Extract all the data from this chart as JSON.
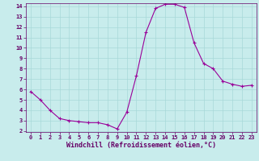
{
  "x": [
    0,
    1,
    2,
    3,
    4,
    5,
    6,
    7,
    8,
    9,
    10,
    11,
    12,
    13,
    14,
    15,
    16,
    17,
    18,
    19,
    20,
    21,
    22,
    23
  ],
  "y": [
    5.8,
    5.0,
    4.0,
    3.2,
    3.0,
    2.9,
    2.8,
    2.8,
    2.6,
    2.2,
    3.8,
    7.3,
    11.5,
    13.8,
    14.2,
    14.2,
    13.9,
    10.5,
    8.5,
    8.0,
    6.8,
    6.5,
    6.3,
    6.4
  ],
  "line_color": "#990099",
  "marker": "+",
  "background_color": "#c8ecec",
  "grid_color": "#a8d8d8",
  "axis_color": "#660066",
  "xlabel": "Windchill (Refroidissement éolien,°C)",
  "ylim": [
    2,
    14
  ],
  "xlim": [
    -0.5,
    23.5
  ],
  "yticks": [
    2,
    3,
    4,
    5,
    6,
    7,
    8,
    9,
    10,
    11,
    12,
    13,
    14
  ],
  "xticks": [
    0,
    1,
    2,
    3,
    4,
    5,
    6,
    7,
    8,
    9,
    10,
    11,
    12,
    13,
    14,
    15,
    16,
    17,
    18,
    19,
    20,
    21,
    22,
    23
  ],
  "tick_fontsize": 5,
  "xlabel_fontsize": 6,
  "line_width": 0.8,
  "marker_size": 3
}
